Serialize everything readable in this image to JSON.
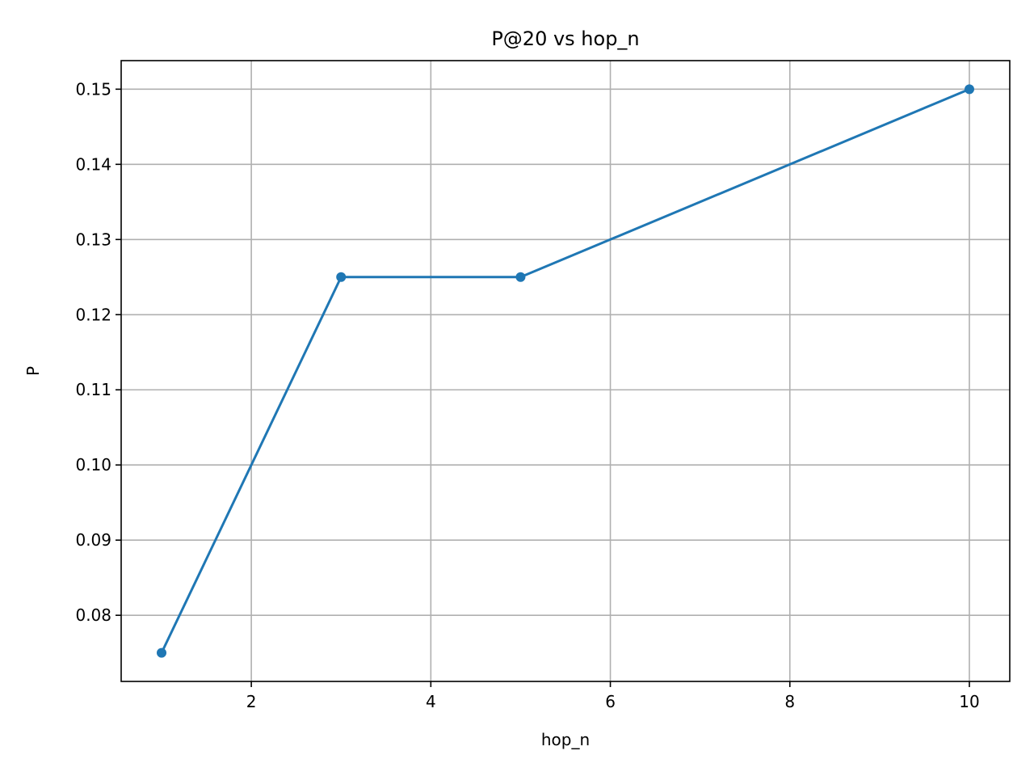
{
  "chart_data": {
    "type": "line",
    "title": "P@20 vs hop_n",
    "xlabel": "hop_n",
    "ylabel": "P",
    "xlim": [
      0.55,
      10.45
    ],
    "ylim": [
      0.0712,
      0.1538
    ],
    "xticks": [
      2,
      4,
      6,
      8,
      10
    ],
    "xtick_labels": [
      "2",
      "4",
      "6",
      "8",
      "10"
    ],
    "yticks": [
      0.08,
      0.09,
      0.1,
      0.11,
      0.12,
      0.13,
      0.14,
      0.15
    ],
    "ytick_labels": [
      "0.08",
      "0.09",
      "0.10",
      "0.11",
      "0.12",
      "0.13",
      "0.14",
      "0.15"
    ],
    "grid": true,
    "series": [
      {
        "color": "#1f77b4",
        "marker": "circle",
        "x": [
          1,
          3,
          5,
          10
        ],
        "y": [
          0.075,
          0.125,
          0.125,
          0.15
        ]
      }
    ]
  }
}
